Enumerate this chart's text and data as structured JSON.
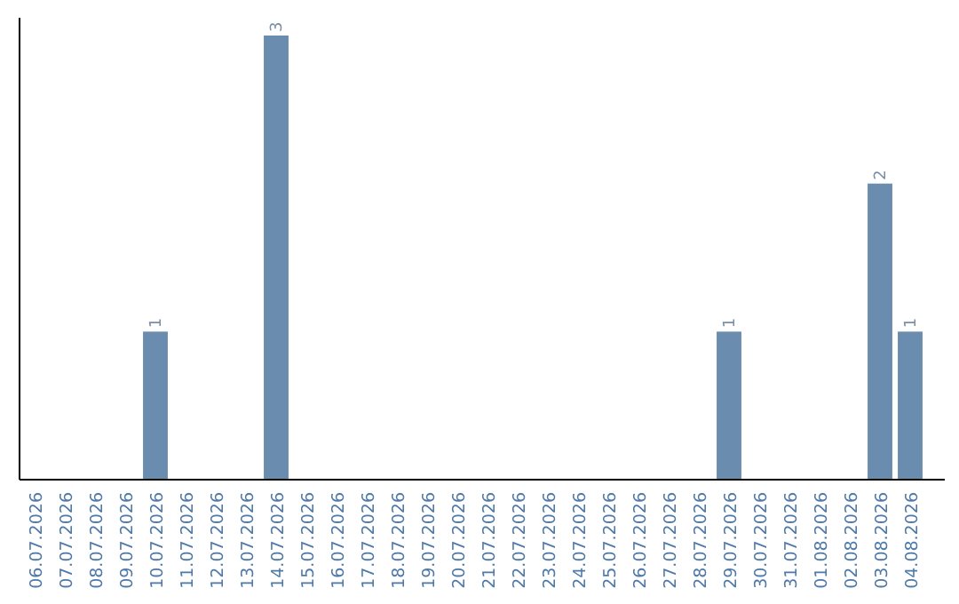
{
  "chart_data": {
    "type": "bar",
    "categories": [
      "06.07.2026",
      "07.07.2026",
      "08.07.2026",
      "09.07.2026",
      "10.07.2026",
      "11.07.2026",
      "12.07.2026",
      "13.07.2026",
      "14.07.2026",
      "15.07.2026",
      "16.07.2026",
      "17.07.2026",
      "18.07.2026",
      "19.07.2026",
      "20.07.2026",
      "21.07.2026",
      "22.07.2026",
      "23.07.2026",
      "24.07.2026",
      "25.07.2026",
      "26.07.2026",
      "27.07.2026",
      "28.07.2026",
      "29.07.2026",
      "30.07.2026",
      "31.07.2026",
      "01.08.2026",
      "02.08.2026",
      "03.08.2026",
      "04.08.2026"
    ],
    "values": [
      0,
      0,
      0,
      0,
      1,
      0,
      0,
      0,
      3,
      0,
      0,
      0,
      0,
      0,
      0,
      0,
      0,
      0,
      0,
      0,
      0,
      0,
      0,
      1,
      0,
      0,
      0,
      0,
      2,
      1
    ],
    "color": "#6a8cae",
    "value_labels": [
      null,
      null,
      null,
      null,
      "1",
      null,
      null,
      null,
      "3",
      null,
      null,
      null,
      null,
      null,
      null,
      null,
      null,
      null,
      null,
      null,
      null,
      null,
      null,
      "1",
      null,
      null,
      null,
      null,
      "2",
      "1"
    ],
    "tick_labels": "x"
  }
}
